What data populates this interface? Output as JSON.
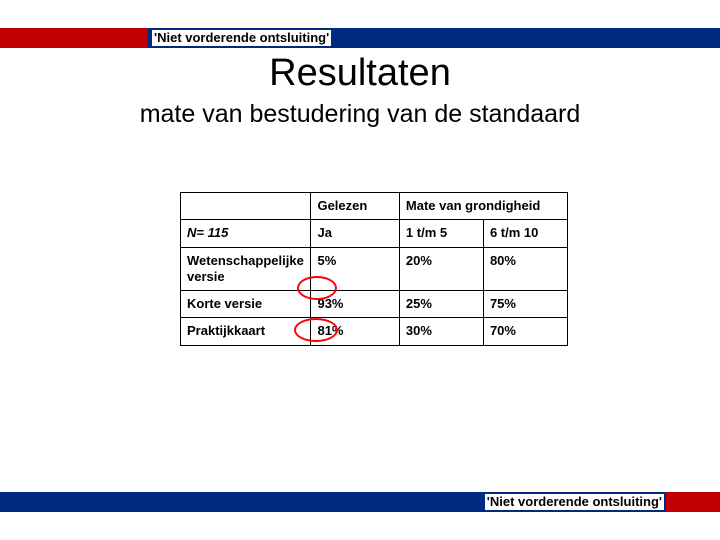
{
  "header": {
    "tag_top": "'Niet vorderende ontsluiting'",
    "title": "Resultaten",
    "subtitle": "mate van bestudering van de standaard"
  },
  "table": {
    "colA_header": "",
    "colB_header": "Gelezen",
    "colCD_header": "Mate van grondigheid",
    "row1": {
      "a": "N= 115",
      "b": "Ja",
      "c": "1 t/m 5",
      "d": "6 t/m 10"
    },
    "row2": {
      "a": "Wetenschappelijke versie",
      "b": "5%",
      "c": "20%",
      "d": "80%"
    },
    "row3": {
      "a": "Korte versie",
      "b": "93%",
      "c": "25%",
      "d": "75%"
    },
    "row4": {
      "a": "Praktijkkaart",
      "b": "81%",
      "c": "30%",
      "d": "70%"
    }
  },
  "footer": {
    "tag_bottom": "'Niet vorderende ontsluiting'"
  },
  "style": {
    "band_color": "#002a80",
    "accent_color": "#c00000",
    "annotation_color": "#ff0000",
    "background": "#ffffff",
    "text_color": "#000000",
    "title_fontsize": 38,
    "subtitle_fontsize": 25,
    "table_fontsize": 13,
    "tag_fontsize": 13
  }
}
